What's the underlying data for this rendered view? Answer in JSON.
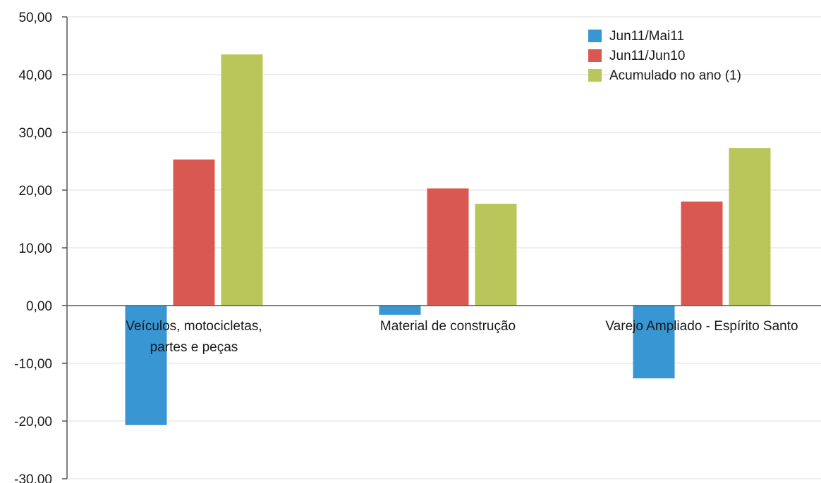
{
  "chart_data": {
    "type": "bar",
    "title": "",
    "xlabel": "",
    "ylabel": "",
    "ylim": [
      -30,
      50
    ],
    "yticks": [
      50,
      40,
      30,
      20,
      10,
      0,
      -10,
      -20,
      -30
    ],
    "ytick_labels": [
      "50,00",
      "40,00",
      "30,00",
      "20,00",
      "10,00",
      "0,00",
      "-10,00",
      "-20,00",
      "-30,00"
    ],
    "grid": true,
    "legend_position": "top-right",
    "categories": [
      [
        "Veículos, motocicletas,",
        "partes e peças"
      ],
      [
        "Material de construção"
      ],
      [
        "Varejo Ampliado - Espírito Santo"
      ]
    ],
    "series": [
      {
        "name": "Jun11/Mai11",
        "color": "#3896d3",
        "values": [
          -20.7,
          -1.6,
          -12.6
        ]
      },
      {
        "name": "Jun11/Jun10",
        "color": "#d95852",
        "values": [
          25.3,
          20.3,
          18.0
        ]
      },
      {
        "name": "Acumulado no ano (1)",
        "color": "#b9c75a",
        "values": [
          43.5,
          17.6,
          27.3
        ]
      }
    ]
  }
}
